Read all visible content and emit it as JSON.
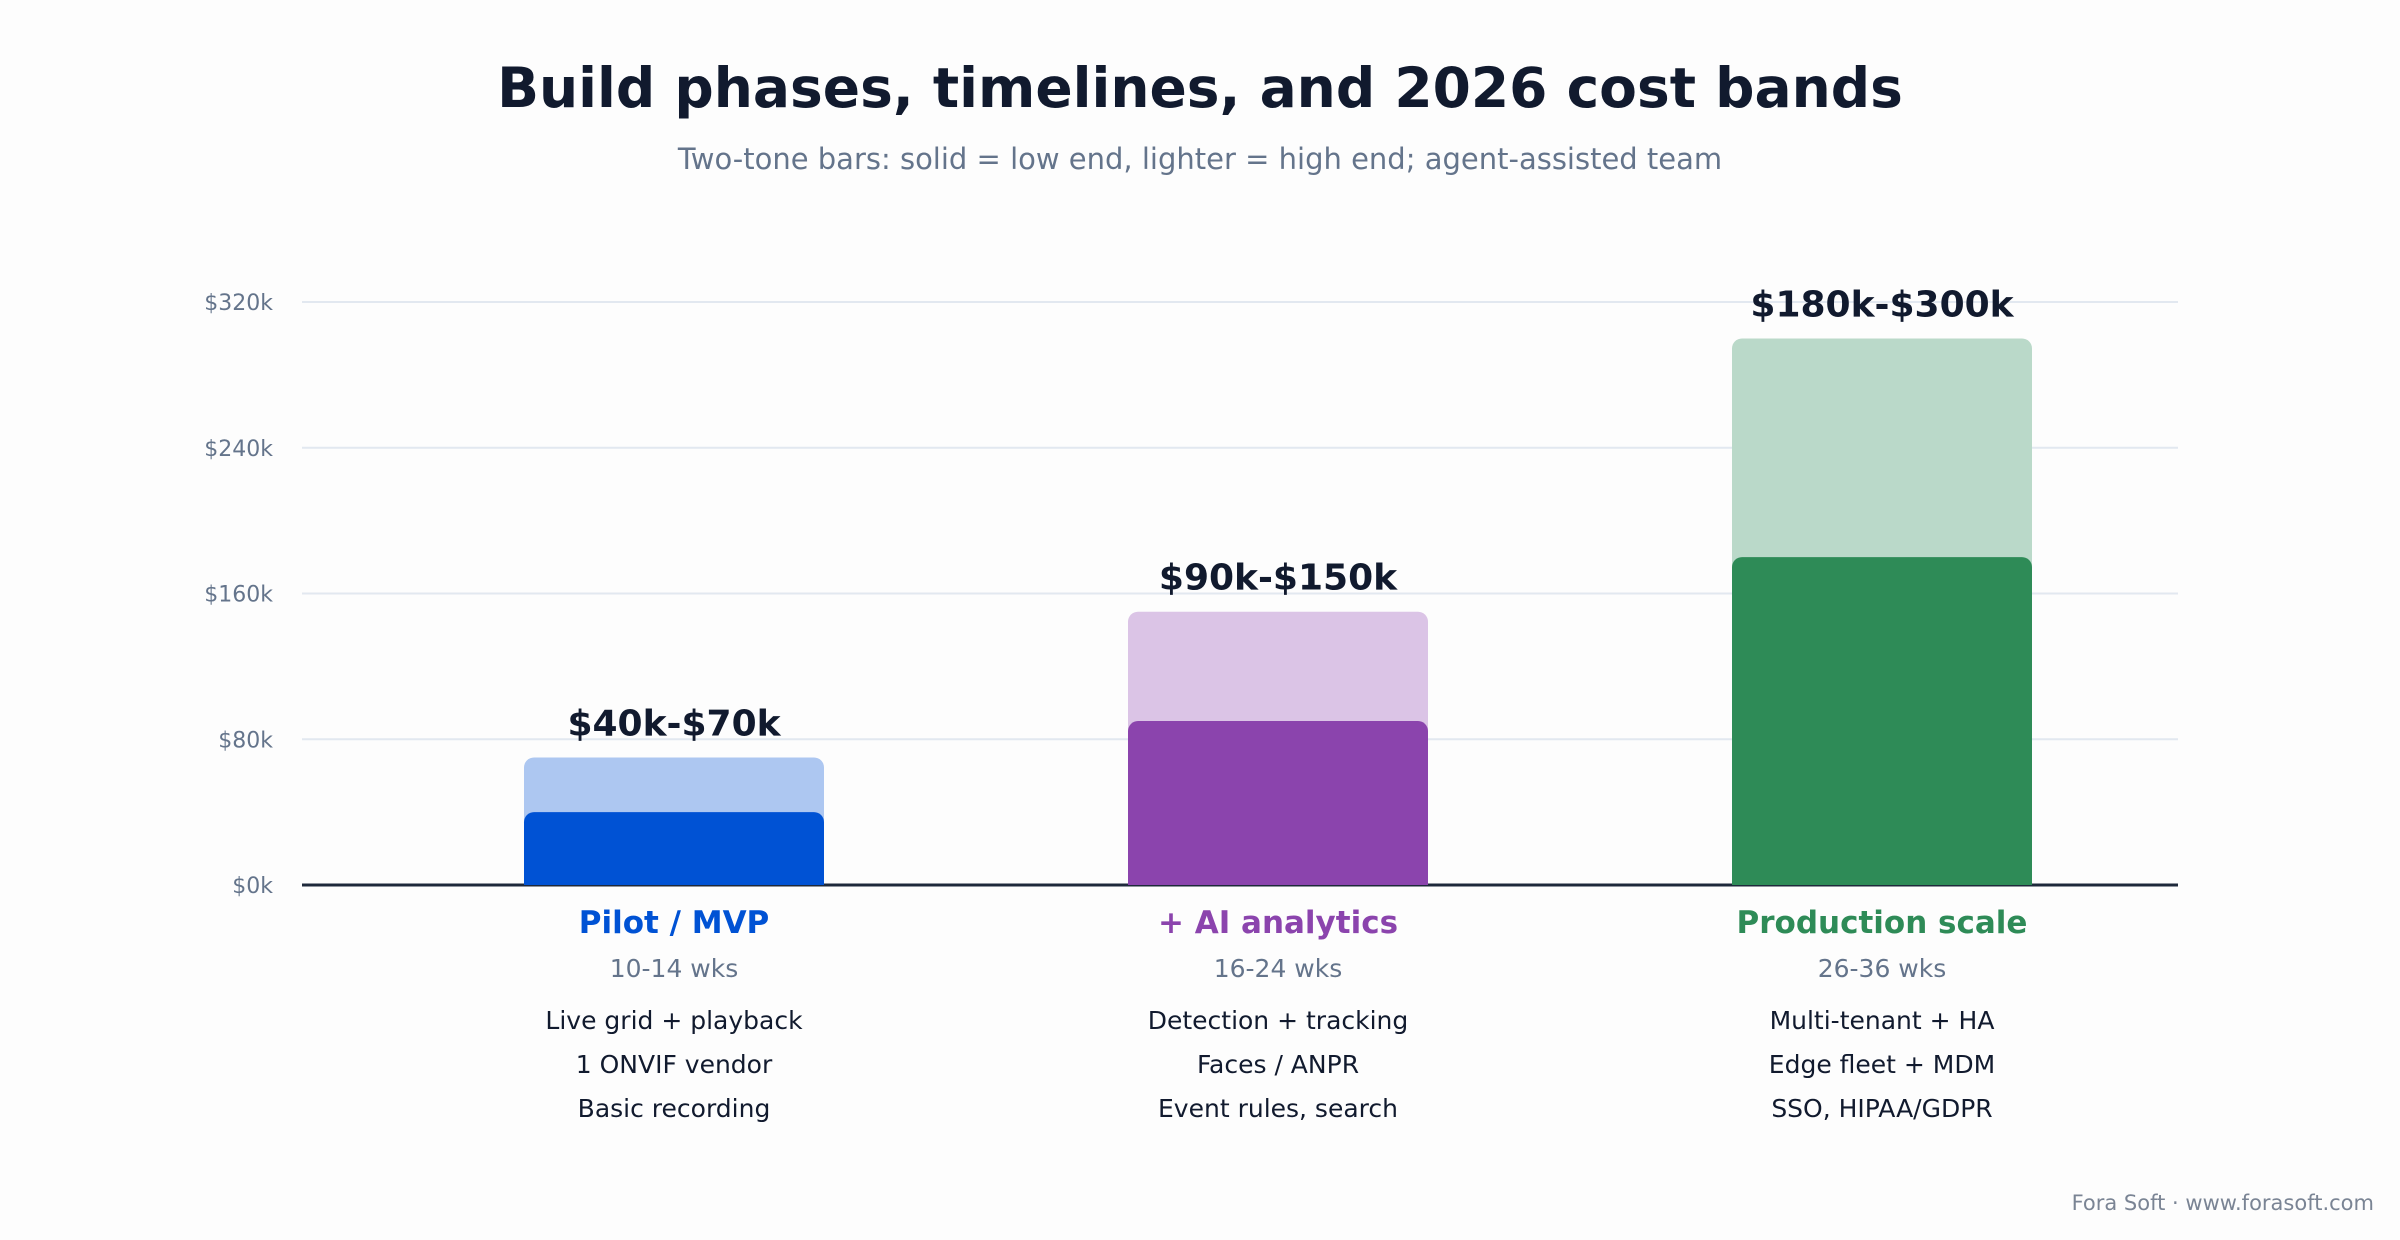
{
  "title": "Build phases, timelines, and 2026 cost bands",
  "subtitle": "Two-tone bars: solid = low end, lighter = high end; agent-assisted team",
  "footer": "Fora Soft · www.forasoft.com",
  "chart_data": {
    "type": "bar",
    "stacked_range": true,
    "categories": [
      "Pilot / MVP",
      "+ AI analytics",
      "Production scale"
    ],
    "series": [
      {
        "name": "low end",
        "values": [
          40,
          90,
          180
        ]
      },
      {
        "name": "high end",
        "values": [
          70,
          150,
          300
        ]
      }
    ],
    "unit": "$k",
    "ylim": [
      0,
      320
    ],
    "yticks": [
      0,
      80,
      160,
      240,
      320
    ],
    "ytick_labels": [
      "$0k",
      "$80k",
      "$160k",
      "$240k",
      "$320k"
    ],
    "grid": true,
    "range_labels": [
      "$40k-$70k",
      "$90k-$150k",
      "$180k-$300k"
    ],
    "durations": [
      "10-14 wks",
      "16-24 wks",
      "26-36 wks"
    ],
    "features": [
      [
        "Live grid + playback",
        "1 ONVIF vendor",
        "Basic recording"
      ],
      [
        "Detection + tracking",
        "Faces / ANPR",
        "Event rules, search"
      ],
      [
        "Multi-tenant + HA",
        "Edge fleet + MDM",
        "SSO, HIPAA/GDPR"
      ]
    ],
    "colors": {
      "solid": [
        "#0052d4",
        "#8b44ad",
        "#2e8b57"
      ],
      "light": [
        "#adc7f1",
        "#dbc4e6",
        "#bad9c9"
      ],
      "axis": "#1e293b",
      "grid": "#e2e8f0",
      "tick_text": "#64748b"
    }
  }
}
